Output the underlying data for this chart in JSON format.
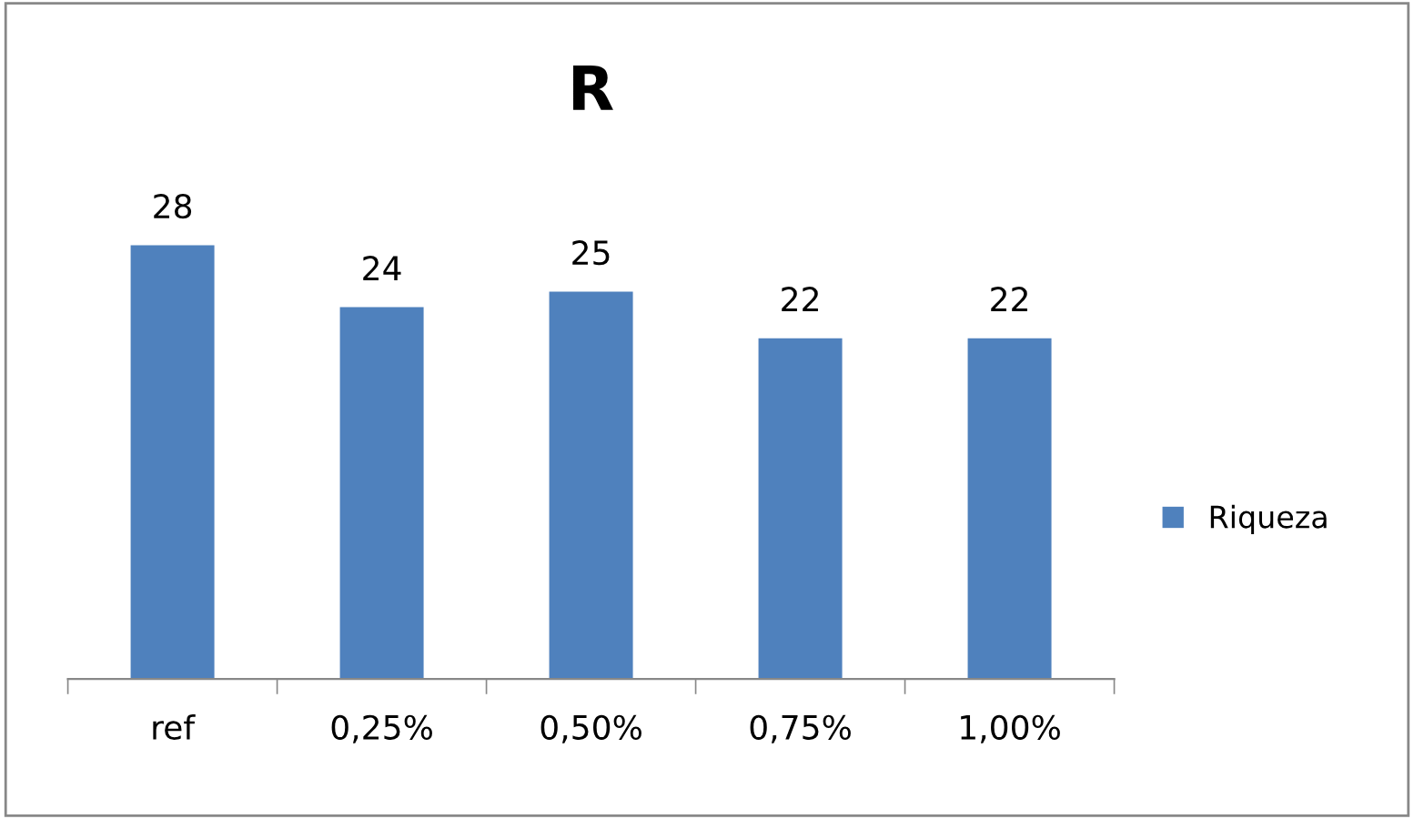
{
  "chart_data": {
    "type": "bar",
    "title": "R",
    "categories": [
      "ref",
      "0,25%",
      "0,50%",
      "0,75%",
      "1,00%"
    ],
    "series": [
      {
        "name": "Riqueza",
        "color": "#4f81bd",
        "values": [
          28,
          24,
          25,
          22,
          22
        ]
      }
    ],
    "tick_labels": "x",
    "data_labels": true,
    "legend": "right",
    "grid": false
  }
}
